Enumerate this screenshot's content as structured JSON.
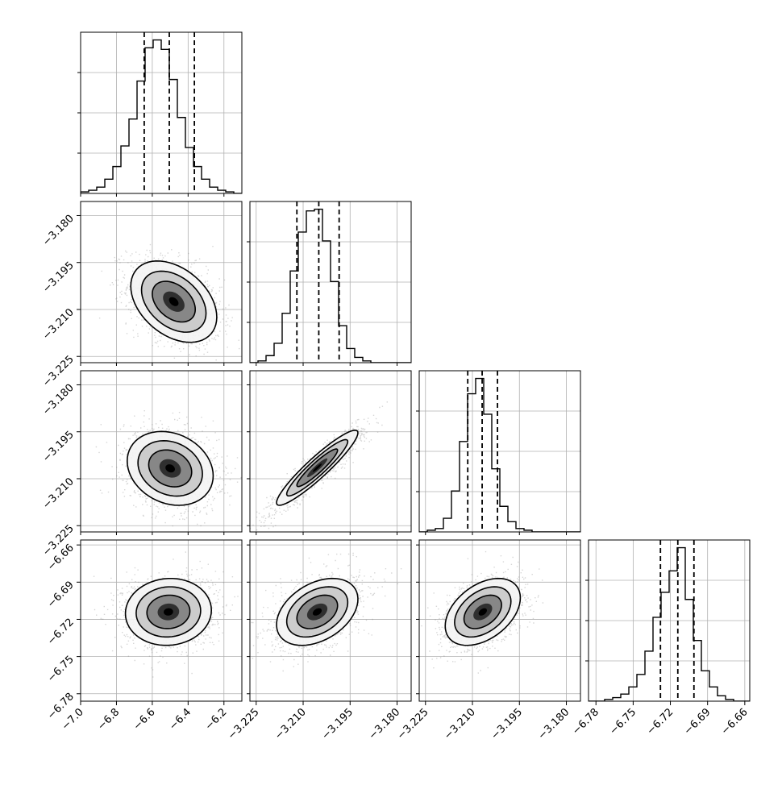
{
  "chart_data": {
    "type": "corner",
    "title": "",
    "parameters": [
      {
        "index": 0,
        "range": [
          -7.0,
          -6.1
        ],
        "ticks": [
          -7.0,
          -6.8,
          -6.6,
          -6.4,
          -6.2
        ],
        "tick_labels": [
          "−7.0",
          "−6.8",
          "−6.6",
          "−6.4",
          "−6.2"
        ],
        "quantiles": [
          -6.645,
          -6.505,
          -6.365
        ]
      },
      {
        "index": 1,
        "range": [
          -3.227,
          -3.1755
        ],
        "ticks": [
          -3.225,
          -3.21,
          -3.195,
          -3.18
        ],
        "tick_labels": [
          "−3.225",
          "−3.210",
          "−3.195",
          "−3.180"
        ],
        "quantiles": [
          -3.212,
          -3.205,
          -3.1985
        ]
      },
      {
        "index": 2,
        "range": [
          -3.227,
          -3.1755
        ],
        "ticks": [
          -3.225,
          -3.21,
          -3.195,
          -3.18
        ],
        "tick_labels": [
          "−3.225",
          "−3.210",
          "−3.195",
          "−3.180"
        ],
        "quantiles": [
          -3.2115,
          -3.2069,
          -3.202
        ]
      },
      {
        "index": 3,
        "range": [
          -6.786,
          -6.656
        ],
        "ticks": [
          -6.78,
          -6.75,
          -6.72,
          -6.69,
          -6.66
        ],
        "tick_labels": [
          "−6.78",
          "−6.75",
          "−6.72",
          "−6.69",
          "−6.66"
        ],
        "quantiles": [
          -6.728,
          -6.714,
          -6.701
        ]
      }
    ],
    "histograms": [
      {
        "param": 0,
        "bins": 20,
        "counts": [
          1,
          2,
          4,
          9,
          17,
          30,
          47,
          71,
          92,
          97,
          91,
          72,
          48,
          29,
          17,
          9,
          4,
          2,
          1,
          0
        ]
      },
      {
        "param": 1,
        "bins": 20,
        "counts": [
          0,
          1,
          4,
          11,
          28,
          52,
          74,
          86,
          87,
          69,
          46,
          21,
          8,
          3,
          1,
          0,
          0,
          0,
          0,
          0
        ]
      },
      {
        "param": 2,
        "bins": 20,
        "counts": [
          0,
          1,
          2,
          8,
          24,
          53,
          81,
          90,
          69,
          37,
          15,
          6,
          2,
          1,
          0,
          0,
          0,
          0,
          0,
          0
        ]
      },
      {
        "param": 3,
        "bins": 20,
        "counts": [
          0,
          0,
          1,
          2,
          4,
          8,
          15,
          28,
          47,
          61,
          73,
          86,
          57,
          34,
          17,
          8,
          3,
          1,
          0,
          0
        ]
      }
    ],
    "pairs": [
      {
        "x_param": 0,
        "y_param": 1,
        "center": [
          -6.48,
          -3.2075
        ],
        "sigma": [
          0.12,
          0.0065
        ],
        "rho": -0.38
      },
      {
        "x_param": 0,
        "y_param": 2,
        "center": [
          -6.5,
          -3.2067
        ],
        "sigma": [
          0.12,
          0.0059
        ],
        "rho": -0.2
      },
      {
        "x_param": 1,
        "y_param": 2,
        "center": [
          -3.2055,
          -3.2065
        ],
        "sigma": [
          0.0065,
          0.006
        ],
        "rho": 0.93
      },
      {
        "x_param": 0,
        "y_param": 3,
        "center": [
          -6.51,
          -6.714
        ],
        "sigma": [
          0.12,
          0.0135
        ],
        "rho": 0.05
      },
      {
        "x_param": 1,
        "y_param": 3,
        "center": [
          -3.2055,
          -6.714
        ],
        "sigma": [
          0.0065,
          0.0135
        ],
        "rho": 0.38
      },
      {
        "x_param": 2,
        "y_param": 3,
        "center": [
          -3.2067,
          -6.714
        ],
        "sigma": [
          0.006,
          0.0135
        ],
        "rho": 0.42
      }
    ],
    "contour_levels_sigma": [
      0.5,
      1.0,
      1.5,
      2.0
    ],
    "grid": true,
    "legend": "none",
    "xlabel": "",
    "ylabel": "",
    "colors": {
      "line": "#000000",
      "scatter": "#8a8a8a",
      "grid": "#b0b0b0",
      "background": "#ffffff"
    }
  }
}
